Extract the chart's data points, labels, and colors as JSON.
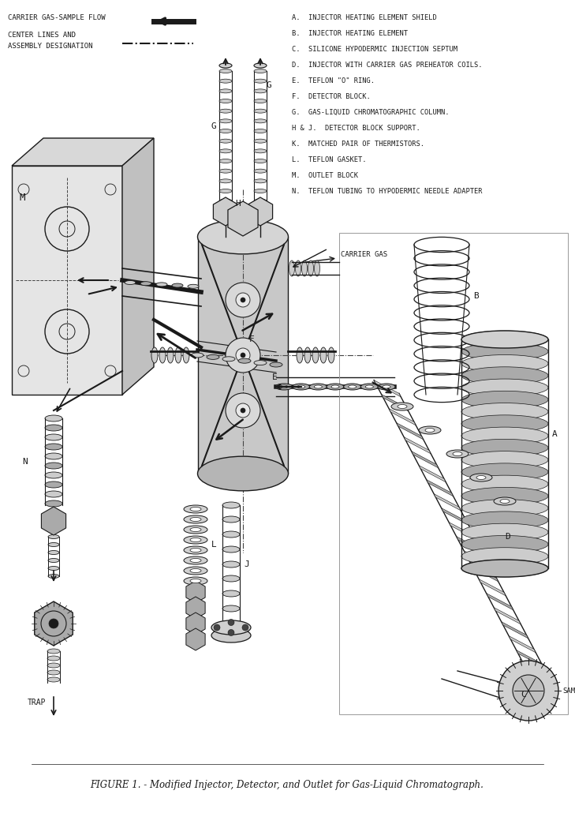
{
  "background_color": "#ffffff",
  "figure_width": 7.29,
  "figure_height": 10.3,
  "title": "FIGURE 1. - Modified Injector, Detector, and Outlet for Gas-Liquid Chromatograph.",
  "title_fontsize": 8.5,
  "legend_line1": "CARRIER GAS-SAMPLE FLOW",
  "legend_line2a": "CENTER LINES AND",
  "legend_line2b": "ASSEMBLY DESIGNATION",
  "parts_list": [
    "A.  INJECTOR HEATING ELEMENT SHIELD",
    "B.  INJECTOR HEATING ELEMENT",
    "C.  SILICONE HYPODERMIC INJECTION SEPTUM",
    "D.  INJECTOR WITH CARRIER GAS PREHEATOR COILS.",
    "E.  TEFLON \"O\" RING.",
    "F.  DETECTOR BLOCK.",
    "G.  GAS-LIQUID CHROMATOGRAPHIC COLUMN.",
    "H & J.  DETECTOR BLOCK SUPPORT.",
    "K.  MATCHED PAIR OF THERMISTORS.",
    "L.  TEFLON GASKET.",
    "M.  OUTLET BLOCK",
    "N.  TEFLON TUBING TO HYPODERMIC NEEDLE ADAPTER"
  ],
  "col_dark": "#1a1a1a",
  "col_med": "#444444",
  "col_light": "#777777",
  "col_fill": "#cccccc",
  "col_fill2": "#aaaaaa",
  "col_fill3": "#e5e5e5",
  "col_white": "#ffffff"
}
